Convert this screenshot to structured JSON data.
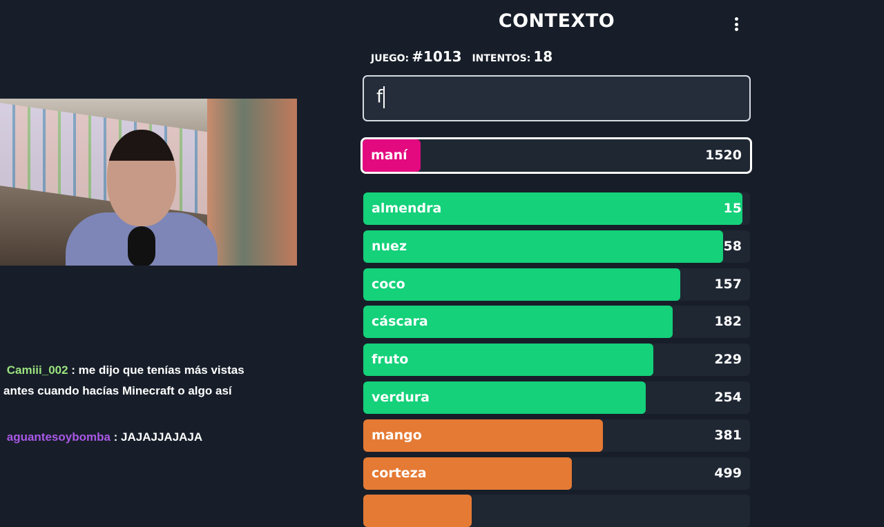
{
  "app": {
    "title": "CONTEXTO",
    "menu_icon": "kebab-menu-icon"
  },
  "info": {
    "game_label": "JUEGO:",
    "game_number": "#1013",
    "attempts_label": "INTENTOS:",
    "attempts": "18"
  },
  "input": {
    "value": "f"
  },
  "current_guess": {
    "word": "maní",
    "rank": 1520,
    "fill": 0.15,
    "color": "#e3097f"
  },
  "guesses": [
    {
      "word": "almendra",
      "rank": "15",
      "fill": 0.98,
      "color": "#14d17a"
    },
    {
      "word": "nuez",
      "rank": "58",
      "fill": 0.93,
      "color": "#14d17a"
    },
    {
      "word": "coco",
      "rank": "157",
      "fill": 0.82,
      "color": "#14d17a"
    },
    {
      "word": "cáscara",
      "rank": "182",
      "fill": 0.8,
      "color": "#14d17a"
    },
    {
      "word": "fruto",
      "rank": "229",
      "fill": 0.75,
      "color": "#14d17a"
    },
    {
      "word": "verdura",
      "rank": "254",
      "fill": 0.73,
      "color": "#14d17a"
    },
    {
      "word": "mango",
      "rank": "381",
      "fill": 0.62,
      "color": "#e57a34"
    },
    {
      "word": "corteza",
      "rank": "499",
      "fill": 0.54,
      "color": "#e57a34"
    },
    {
      "word": "",
      "rank": "",
      "fill": 0.28,
      "color": "#e57a34"
    }
  ],
  "chat": [
    {
      "user": "Camiii_002",
      "message": " : me dijo que tenías más vistas antes cuando hacías Minecraft o algo así",
      "color": "#9be37f"
    },
    {
      "user": "aguantesoybomba",
      "message": " : JAJAJJAJAJA",
      "color": "#a958e6"
    }
  ]
}
